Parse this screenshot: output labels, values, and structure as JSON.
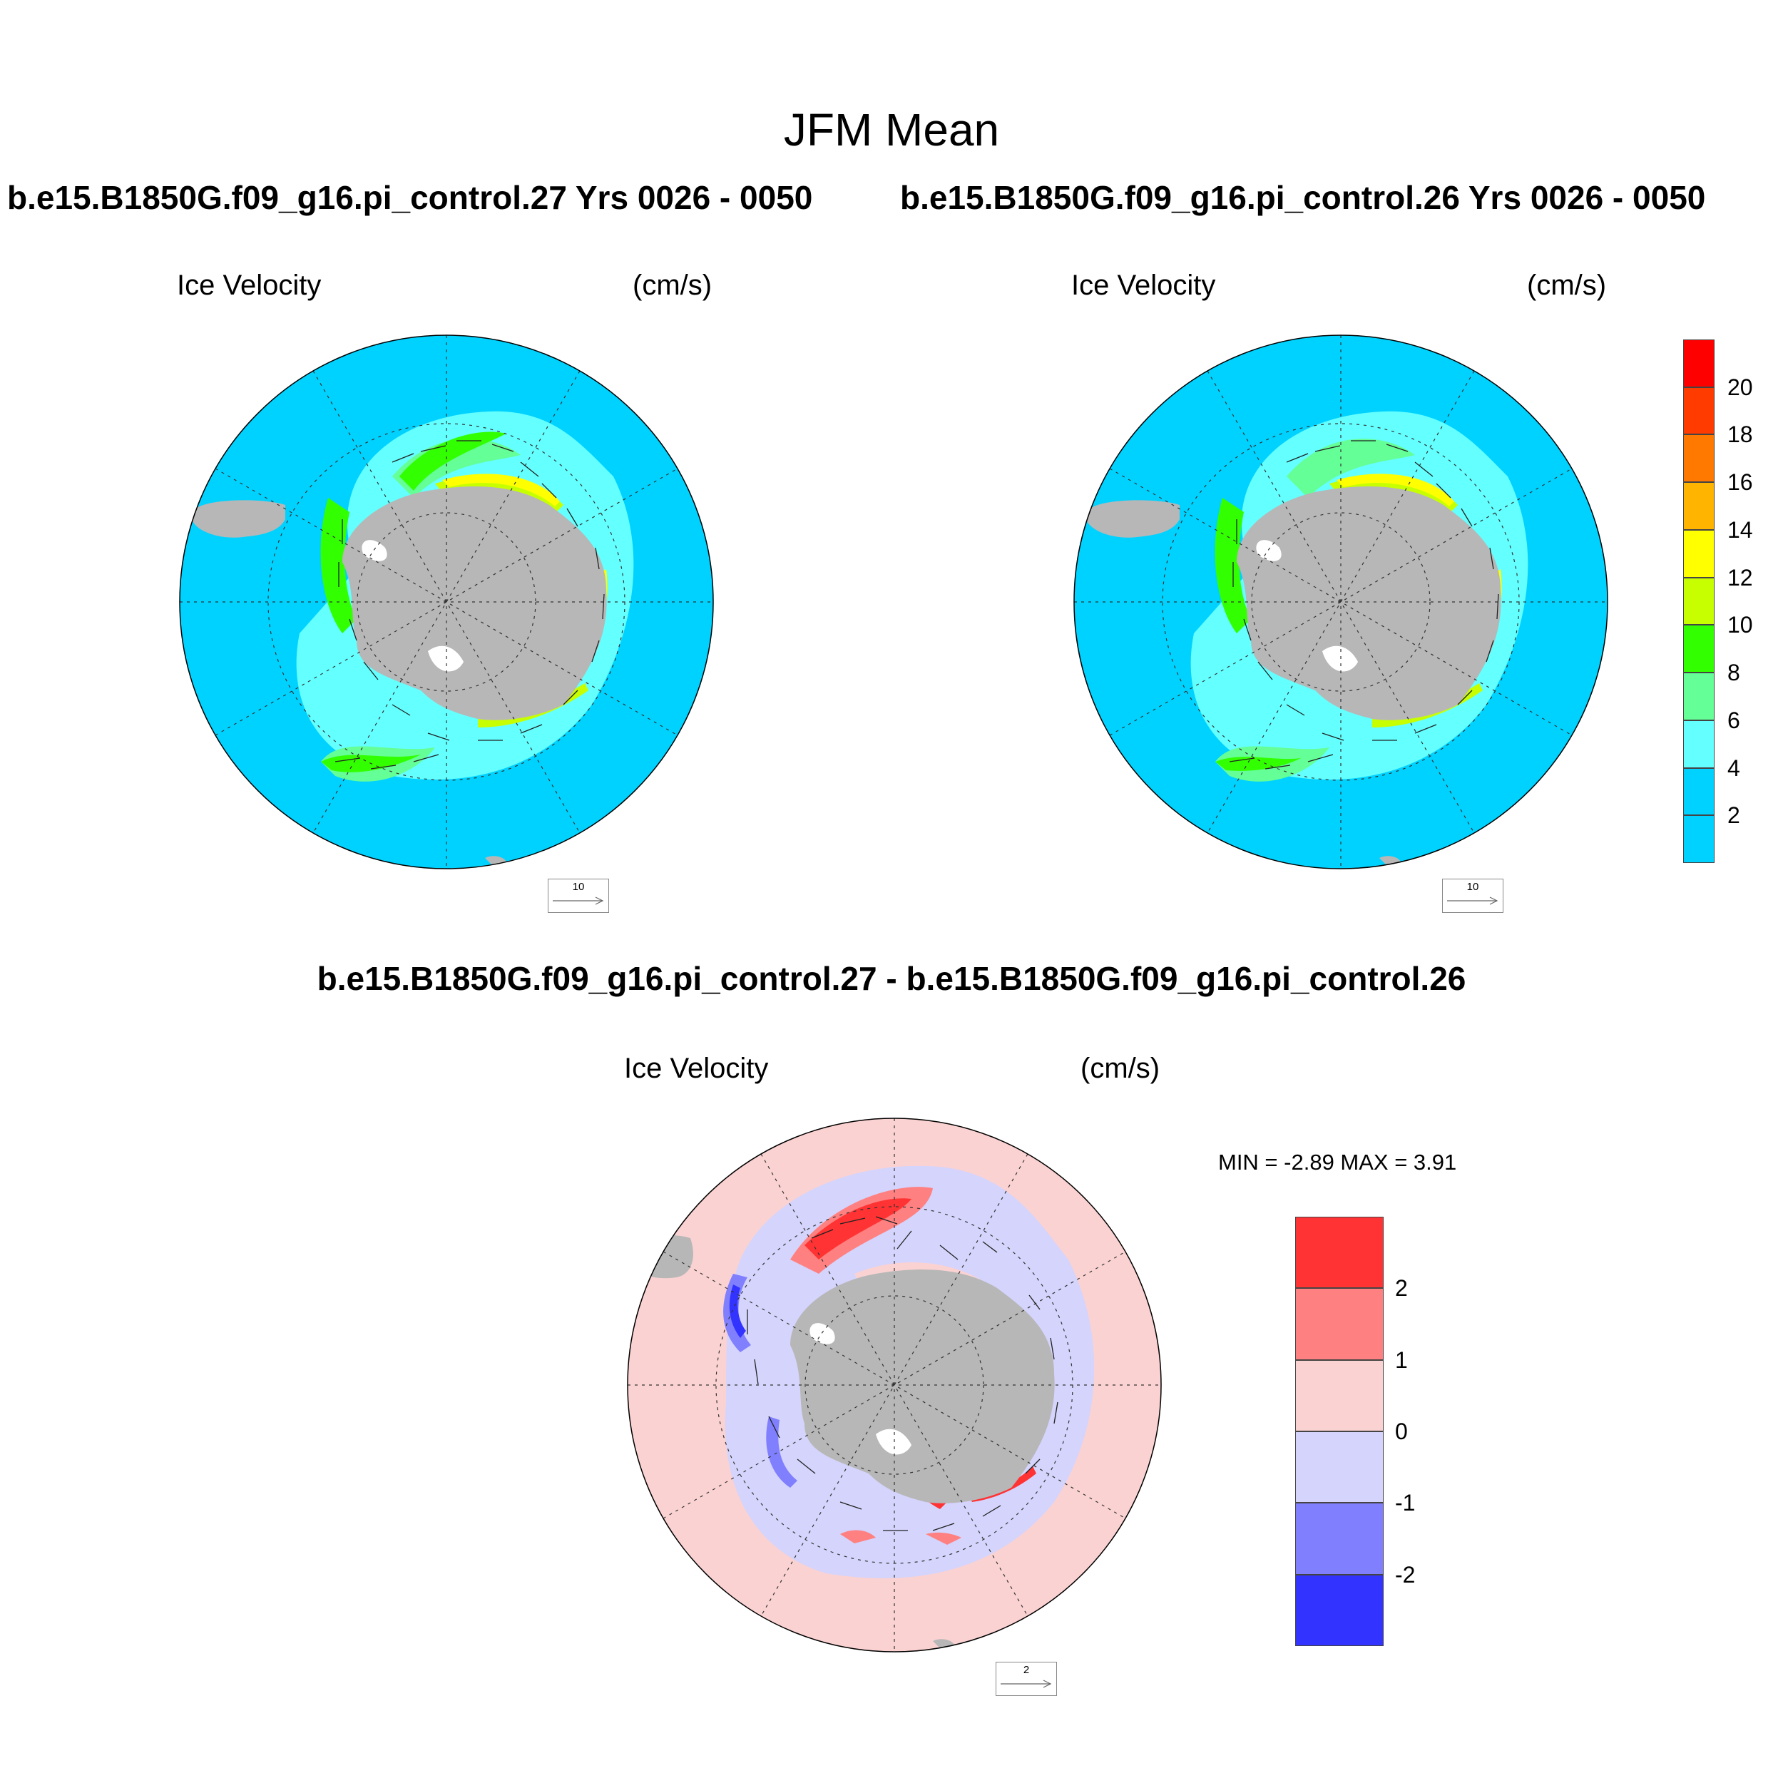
{
  "page_title": "JFM Mean",
  "panels": [
    {
      "case_title": "b.e15.B1850G.f09_g16.pi_control.27  Yrs 0026 - 0050",
      "field_label": "Ice Velocity",
      "units_label": "(cm/s)",
      "ref_vector_label": "10"
    },
    {
      "case_title": "b.e15.B1850G.f09_g16.pi_control.26  Yrs 0026 - 0050",
      "field_label": "Ice Velocity",
      "units_label": "(cm/s)",
      "ref_vector_label": "10"
    },
    {
      "case_title": "b.e15.B1850G.f09_g16.pi_control.27 - b.e15.B1850G.f09_g16.pi_control.26",
      "field_label": "Ice Velocity",
      "units_label": "(cm/s)",
      "ref_vector_label": "2",
      "min_max_label": "MIN =  -2.89 MAX =   3.91"
    }
  ],
  "colorbar_top": {
    "labels": [
      "20",
      "18",
      "16",
      "14",
      "12",
      "10",
      "8",
      "6",
      "4",
      "2"
    ],
    "colors": [
      "#ff0000",
      "#ff3b00",
      "#ff7800",
      "#ffb400",
      "#ffff00",
      "#c8ff00",
      "#32ff00",
      "#64ff96",
      "#64ffff",
      "#00d2ff",
      "#00d2ff"
    ]
  },
  "colorbar_diff": {
    "labels": [
      "2",
      "1",
      "0",
      "-1",
      "-2"
    ],
    "colors": [
      "#ff3333",
      "#ff8080",
      "#fbd2d2",
      "#d4d4fc",
      "#8080ff",
      "#3333ff"
    ]
  },
  "map_colors": {
    "ocean_speed": "#00d2ff",
    "ocean_diff": "#fbd2d2",
    "land": "#b7b7b7",
    "ice_low": "#64ffff",
    "ice_mid": "#64ff96",
    "ice_green": "#32ff00",
    "ice_yellow": "#ffff00",
    "ice_lime": "#c8ff00",
    "diff_neg1": "#d4d4fc",
    "diff_neg2": "#8080ff",
    "diff_neg3": "#3333ff",
    "diff_pos1": "#ff8080",
    "diff_pos2": "#ff3333"
  }
}
